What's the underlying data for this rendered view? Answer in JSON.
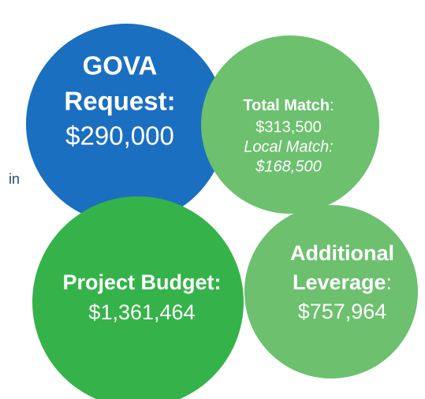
{
  "side_text": "in",
  "bubbles": [
    {
      "title_lines": [
        "GOVA",
        "Request:"
      ],
      "value": "$290,000"
    },
    {
      "label": "Total Match",
      "label_suffix": ":",
      "value": "$313,500",
      "sub_label": "Local Match:",
      "sub_value": "$168,500"
    },
    {
      "label": "Project Budget:",
      "value": "$1,361,464"
    },
    {
      "label_lines": [
        "Additional",
        "Leverage"
      ],
      "label_suffix": ":",
      "value": "$757,964"
    }
  ]
}
